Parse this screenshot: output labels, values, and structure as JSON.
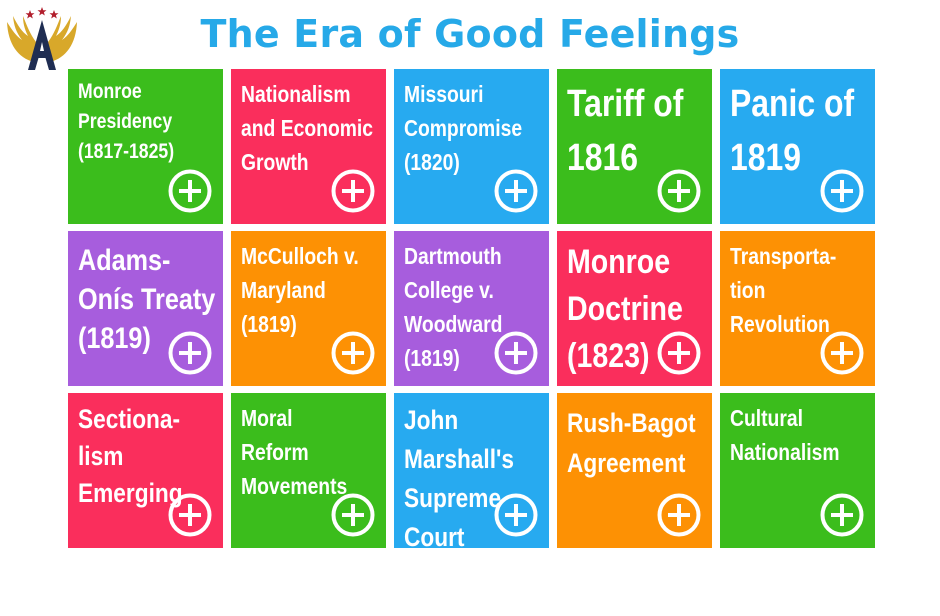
{
  "header": {
    "title": "The Era of Good Feelings",
    "logo_icon": "winged-a-logo-icon"
  },
  "colors": {
    "title": "#26a9e8",
    "green": "#3bbd1c",
    "red": "#fa2e5c",
    "blue": "#27aaf0",
    "purple": "#a75ddd",
    "orange": "#fd9104"
  },
  "tiles": [
    {
      "lines": [
        "Monroe",
        "Presidency",
        "(1817-1825)"
      ],
      "color": "green",
      "size": "xs"
    },
    {
      "lines": [
        "Nationalism",
        "and Economic",
        "Growth"
      ],
      "color": "red",
      "size": "s"
    },
    {
      "lines": [
        "Missouri",
        "Compromise",
        "(1820)"
      ],
      "color": "blue",
      "size": "s"
    },
    {
      "lines": [
        "Tariff of",
        "1816"
      ],
      "color": "green",
      "size": "xl"
    },
    {
      "lines": [
        "Panic of",
        "1819"
      ],
      "color": "blue",
      "size": "xl"
    },
    {
      "lines": [
        "Adams-",
        "Onís Treaty",
        "(1819)"
      ],
      "color": "purple",
      "size": "l"
    },
    {
      "lines": [
        "McCulloch v.",
        "Maryland",
        "(1819)"
      ],
      "color": "orange",
      "size": "s"
    },
    {
      "lines": [
        "Dartmouth",
        "College v.",
        "Woodward",
        "(1819)"
      ],
      "color": "purple",
      "size": "s"
    },
    {
      "lines": [
        "Monroe",
        "Doctrine",
        "(1823)"
      ],
      "color": "red",
      "size": "l2"
    },
    {
      "lines": [
        "Transporta-",
        "tion",
        "Revolution"
      ],
      "color": "orange",
      "size": "s"
    },
    {
      "lines": [
        "Sectiona-",
        "lism",
        "Emerging"
      ],
      "color": "red",
      "size": "m"
    },
    {
      "lines": [
        "Moral",
        "Reform",
        "Movements"
      ],
      "color": "green",
      "size": "s"
    },
    {
      "lines": [
        "John",
        "Marshall's",
        "Supreme",
        "Court"
      ],
      "color": "blue",
      "size": "m2"
    },
    {
      "lines": [
        "Rush-Bagot",
        "Agreement"
      ],
      "color": "orange",
      "size": "m3"
    },
    {
      "lines": [
        "Cultural",
        "Nationalism"
      ],
      "color": "green",
      "size": "s"
    }
  ],
  "tile_icon": "plus-circle-icon"
}
